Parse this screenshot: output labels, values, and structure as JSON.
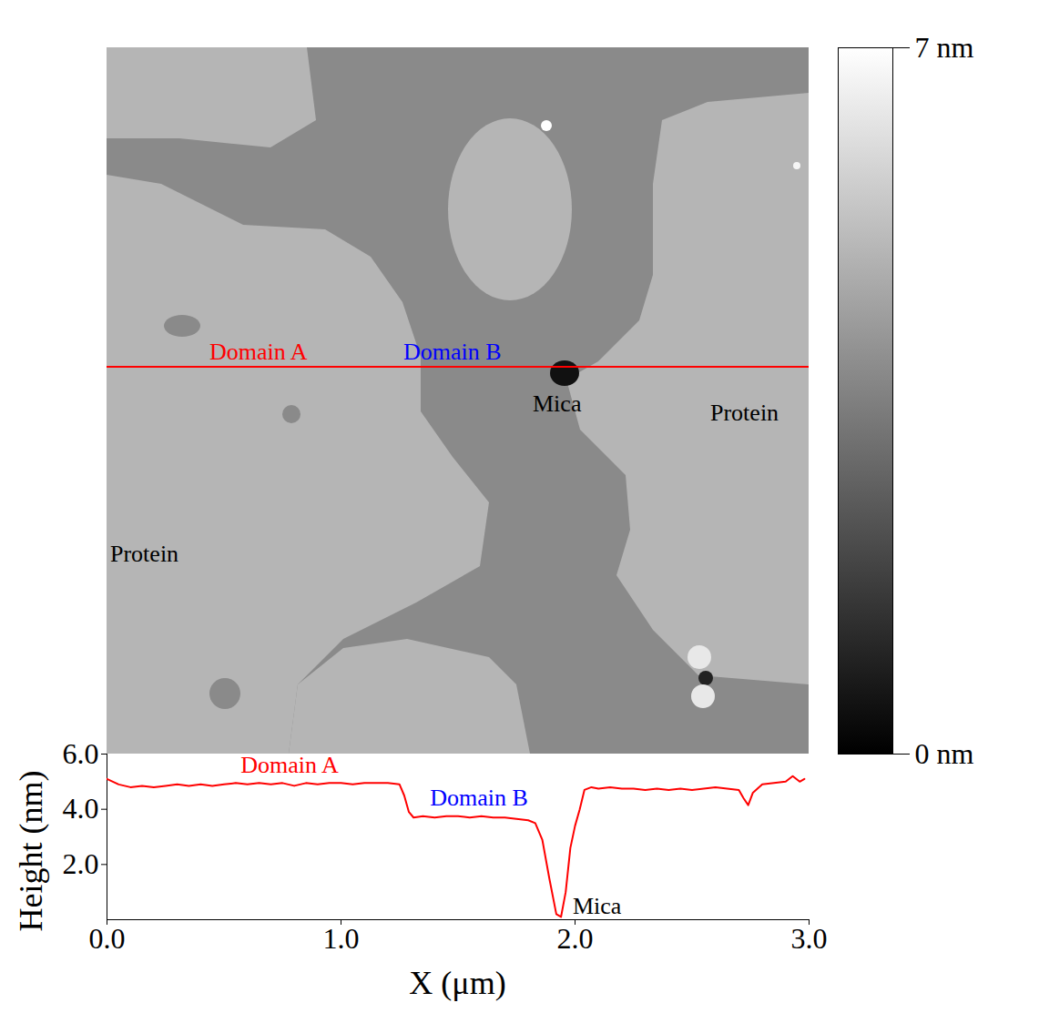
{
  "chart_data": [
    {
      "type": "image",
      "color": "#ff0000",
      "labels": [
        {
          "text": "Domain A",
          "color": "#ff0000"
        },
        {
          "text": "Domain B",
          "color": "#0000ff"
        },
        {
          "text": "Mica",
          "color": "#000000"
        },
        {
          "text": "Protein",
          "color": "#000000"
        },
        {
          "text": "Protein",
          "color": "#000000"
        }
      ],
      "colorbar": {
        "range": [
          0,
          7
        ],
        "ticks": [
          {
            "value": 0,
            "label": "0 nm"
          },
          {
            "value": 7,
            "label": "7 nm"
          }
        ]
      }
    },
    {
      "type": "line",
      "x_label": "X (μm)",
      "y_label": "Height (nm)",
      "xlim": [
        0,
        3
      ],
      "ylim": [
        0,
        6
      ],
      "xticks": [
        0,
        1,
        2,
        3
      ],
      "yticks": [
        2,
        4,
        6
      ],
      "color": "#ff0000",
      "x": [
        0,
        0.05,
        0.1,
        0.15,
        0.2,
        0.25,
        0.3,
        0.35,
        0.4,
        0.45,
        0.5,
        0.55,
        0.6,
        0.65,
        0.7,
        0.75,
        0.8,
        0.85,
        0.9,
        0.95,
        1.0,
        1.05,
        1.1,
        1.15,
        1.2,
        1.25,
        1.27,
        1.29,
        1.31,
        1.35,
        1.4,
        1.45,
        1.5,
        1.55,
        1.6,
        1.65,
        1.7,
        1.75,
        1.8,
        1.83,
        1.86,
        1.89,
        1.92,
        1.94,
        1.96,
        1.98,
        2.0,
        2.02,
        2.04,
        2.07,
        2.1,
        2.15,
        2.2,
        2.25,
        2.3,
        2.35,
        2.4,
        2.45,
        2.5,
        2.55,
        2.6,
        2.65,
        2.7,
        2.72,
        2.74,
        2.76,
        2.8,
        2.85,
        2.9,
        2.93,
        2.96,
        2.98
      ],
      "values": [
        5.1,
        4.9,
        4.8,
        4.85,
        4.8,
        4.85,
        4.9,
        4.85,
        4.9,
        4.85,
        4.9,
        4.95,
        4.9,
        4.95,
        4.9,
        4.95,
        4.85,
        4.95,
        4.9,
        4.95,
        4.95,
        4.9,
        4.95,
        4.95,
        4.95,
        4.9,
        4.5,
        3.9,
        3.7,
        3.75,
        3.7,
        3.75,
        3.75,
        3.7,
        3.75,
        3.7,
        3.7,
        3.65,
        3.6,
        3.5,
        2.9,
        1.5,
        0.2,
        0.1,
        1.0,
        2.6,
        3.4,
        4.0,
        4.7,
        4.8,
        4.75,
        4.8,
        4.75,
        4.75,
        4.7,
        4.75,
        4.7,
        4.75,
        4.7,
        4.75,
        4.8,
        4.75,
        4.7,
        4.4,
        4.15,
        4.6,
        4.9,
        4.95,
        5.0,
        5.2,
        5.0,
        5.1
      ],
      "annotations": [
        {
          "text": "Domain A",
          "color": "#ff0000",
          "x": 0.78,
          "y": 5.6
        },
        {
          "text": "Domain B",
          "color": "#0000ff",
          "x": 1.59,
          "y": 4.4
        },
        {
          "text": "Mica",
          "color": "#000000",
          "x": 1.99,
          "y": 0.5
        }
      ]
    }
  ]
}
